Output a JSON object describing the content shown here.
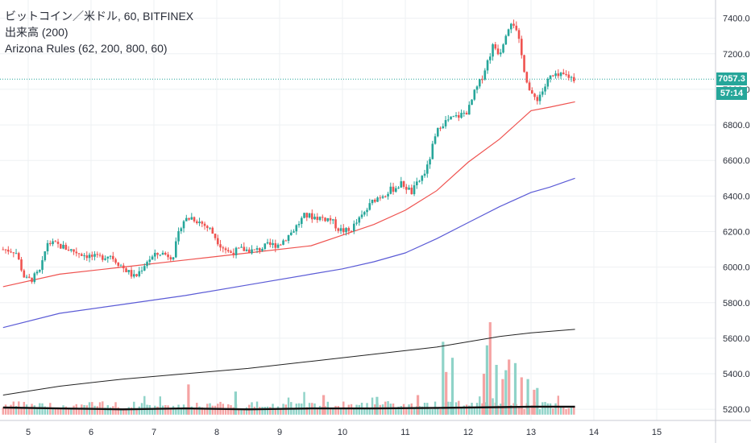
{
  "legend": {
    "line1": "ビットコイン／米ドル, 60, BITFINEX",
    "line2": "出来高 (200)",
    "line3": "Arizona Rules (62, 200, 800, 60)"
  },
  "price_badge": {
    "value": "7057.3",
    "timer": "57:14",
    "color": "#26a69a"
  },
  "colors": {
    "up": "#26a69a",
    "down": "#ef5350",
    "vol_up": "#8fd3c8",
    "vol_down": "#f5a3a3",
    "ma62": "#ef5350",
    "ma200": "#5b5bd6",
    "vol_ma": "#222222",
    "grid": "#eef0f3",
    "text": "#2a2e39"
  },
  "chart_data": {
    "type": "candlestick",
    "symbol": "ビットコイン／米ドル",
    "interval": "60",
    "exchange": "BITFINEX",
    "y_ticks": [
      "7400.0",
      "7200.0",
      "7000.0",
      "6800.0",
      "6600.0",
      "6400.0",
      "6200.0",
      "6000.0",
      "5800.0",
      "5600.0",
      "5400.0",
      "5200.0"
    ],
    "x_ticks": [
      "5",
      "6",
      "7",
      "8",
      "9",
      "10",
      "11",
      "12",
      "13",
      "14",
      "15"
    ],
    "ylim": [
      5160,
      7480
    ],
    "last_price": 7057.3,
    "price_path": [
      [
        4.6,
        6100
      ],
      [
        4.8,
        6090
      ],
      [
        4.95,
        5930
      ],
      [
        5.05,
        5930
      ],
      [
        5.2,
        5980
      ],
      [
        5.3,
        6140
      ],
      [
        5.5,
        6120
      ],
      [
        5.8,
        6080
      ],
      [
        6.1,
        6050
      ],
      [
        6.3,
        6070
      ],
      [
        6.5,
        6000
      ],
      [
        6.7,
        5940
      ],
      [
        6.9,
        6040
      ],
      [
        7.1,
        6080
      ],
      [
        7.3,
        6060
      ],
      [
        7.45,
        6260
      ],
      [
        7.6,
        6280
      ],
      [
        7.75,
        6250
      ],
      [
        7.9,
        6210
      ],
      [
        8.05,
        6130
      ],
      [
        8.2,
        6080
      ],
      [
        8.4,
        6100
      ],
      [
        8.6,
        6090
      ],
      [
        8.8,
        6120
      ],
      [
        9.0,
        6130
      ],
      [
        9.2,
        6200
      ],
      [
        9.4,
        6290
      ],
      [
        9.6,
        6280
      ],
      [
        9.8,
        6270
      ],
      [
        9.95,
        6210
      ],
      [
        10.1,
        6200
      ],
      [
        10.3,
        6280
      ],
      [
        10.5,
        6380
      ],
      [
        10.7,
        6420
      ],
      [
        10.85,
        6450
      ],
      [
        10.95,
        6470
      ],
      [
        11.1,
        6420
      ],
      [
        11.25,
        6500
      ],
      [
        11.35,
        6560
      ],
      [
        11.45,
        6700
      ],
      [
        11.55,
        6800
      ],
      [
        11.7,
        6830
      ],
      [
        11.85,
        6850
      ],
      [
        12.0,
        6880
      ],
      [
        12.1,
        6980
      ],
      [
        12.2,
        7050
      ],
      [
        12.3,
        7150
      ],
      [
        12.4,
        7250
      ],
      [
        12.5,
        7200
      ],
      [
        12.6,
        7320
      ],
      [
        12.7,
        7400
      ],
      [
        12.8,
        7280
      ],
      [
        12.9,
        7100
      ],
      [
        13.0,
        6960
      ],
      [
        13.1,
        6950
      ],
      [
        13.2,
        7000
      ],
      [
        13.3,
        7070
      ],
      [
        13.4,
        7070
      ],
      [
        13.55,
        7080
      ],
      [
        13.7,
        7057
      ]
    ],
    "ma62": [
      [
        4.6,
        5890
      ],
      [
        5.5,
        5960
      ],
      [
        6.5,
        6000
      ],
      [
        7.5,
        6040
      ],
      [
        8.5,
        6080
      ],
      [
        9.5,
        6120
      ],
      [
        10.0,
        6180
      ],
      [
        10.5,
        6240
      ],
      [
        11.0,
        6320
      ],
      [
        11.5,
        6430
      ],
      [
        12.0,
        6590
      ],
      [
        12.5,
        6720
      ],
      [
        13.0,
        6880
      ],
      [
        13.3,
        6900
      ],
      [
        13.7,
        6930
      ]
    ],
    "ma200": [
      [
        4.6,
        5660
      ],
      [
        5.5,
        5740
      ],
      [
        6.5,
        5790
      ],
      [
        7.5,
        5840
      ],
      [
        8.5,
        5900
      ],
      [
        9.5,
        5960
      ],
      [
        10.0,
        5990
      ],
      [
        10.5,
        6030
      ],
      [
        11.0,
        6080
      ],
      [
        11.5,
        6160
      ],
      [
        12.0,
        6250
      ],
      [
        12.5,
        6340
      ],
      [
        13.0,
        6420
      ],
      [
        13.3,
        6450
      ],
      [
        13.7,
        6500
      ]
    ],
    "volume_ma": [
      [
        4.6,
        5280
      ],
      [
        5.5,
        5330
      ],
      [
        6.5,
        5370
      ],
      [
        7.5,
        5400
      ],
      [
        8.5,
        5430
      ],
      [
        9.5,
        5470
      ],
      [
        10.5,
        5510
      ],
      [
        11.5,
        5550
      ],
      [
        12.5,
        5610
      ],
      [
        13.0,
        5630
      ],
      [
        13.7,
        5650
      ]
    ],
    "volume_spikes": [
      [
        11.6,
        5580
      ],
      [
        11.65,
        5410
      ],
      [
        11.75,
        5490
      ],
      [
        12.25,
        5400
      ],
      [
        12.3,
        5560
      ],
      [
        12.35,
        5690
      ],
      [
        12.45,
        5450
      ],
      [
        12.55,
        5370
      ],
      [
        12.6,
        5420
      ],
      [
        12.65,
        5480
      ],
      [
        12.75,
        5460
      ],
      [
        12.85,
        5380
      ],
      [
        12.95,
        5370
      ],
      [
        13.05,
        5310
      ],
      [
        13.1,
        5320
      ],
      [
        7.55,
        5340
      ],
      [
        8.3,
        5300
      ],
      [
        9.7,
        5280
      ],
      [
        10.55,
        5270
      ],
      [
        11.2,
        5280
      ]
    ]
  }
}
